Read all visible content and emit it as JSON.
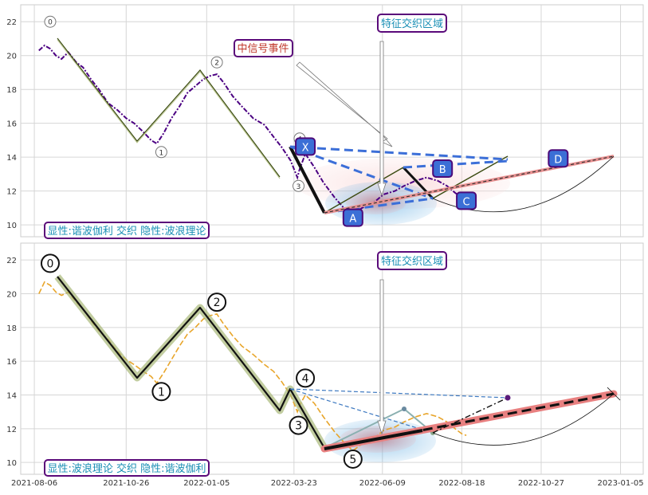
{
  "chart_data": [
    {
      "type": "line",
      "title": "",
      "ylabel": "",
      "xlabel": "",
      "ylim": [
        9.3,
        23.0
      ],
      "yticks": [
        10,
        12,
        14,
        16,
        18,
        20,
        22
      ],
      "grid": true,
      "legend_text": "显性:谐波伽利 交织 隐性:波浪理论",
      "annotations": {
        "event_label": "中信号事件",
        "zone_label": "特征交织区域",
        "harmonic_points": [
          {
            "label": "X",
            "date": "2022-04-02",
            "value": 14.6
          },
          {
            "label": "A",
            "date": "2022-05-14",
            "value": 10.4
          },
          {
            "label": "B",
            "date": "2022-08-01",
            "value": 13.3
          },
          {
            "label": "C",
            "date": "2022-08-22",
            "value": 11.4
          },
          {
            "label": "D",
            "date": "2022-11-11",
            "value": 13.9
          }
        ],
        "wave_circles": [
          {
            "label": "0",
            "date": "2021-08-20",
            "value": 22.0
          },
          {
            "label": "1",
            "date": "2021-11-26",
            "value": 14.3
          },
          {
            "label": "2",
            "date": "2022-01-14",
            "value": 19.6
          },
          {
            "label": "3",
            "date": "2022-03-27",
            "value": 12.3
          },
          {
            "label": "4",
            "date": "2022-03-28",
            "value": 15.1
          }
        ]
      },
      "series": [
        {
          "color": "#4b0082",
          "values": [
            [
              "2021-08-10",
              20.3
            ],
            [
              "2021-08-15",
              20.6
            ],
            [
              "2021-08-20",
              20.4
            ],
            [
              "2021-08-25",
              20.0
            ],
            [
              "2021-08-30",
              19.8
            ],
            [
              "2021-09-05",
              20.2
            ],
            [
              "2021-09-12",
              19.6
            ],
            [
              "2021-09-18",
              19.3
            ],
            [
              "2021-09-25",
              18.6
            ],
            [
              "2021-10-02",
              18.0
            ],
            [
              "2021-10-10",
              17.2
            ],
            [
              "2021-10-18",
              16.8
            ],
            [
              "2021-10-26",
              16.3
            ],
            [
              "2021-11-02",
              16.0
            ],
            [
              "2021-11-10",
              15.5
            ],
            [
              "2021-11-17",
              15.0
            ],
            [
              "2021-11-22",
              14.8
            ],
            [
              "2021-11-28",
              15.4
            ],
            [
              "2021-12-05",
              16.3
            ],
            [
              "2021-12-12",
              17.0
            ],
            [
              "2021-12-19",
              17.8
            ],
            [
              "2021-12-26",
              18.2
            ],
            [
              "2022-01-02",
              18.6
            ],
            [
              "2022-01-08",
              18.8
            ],
            [
              "2022-01-14",
              18.9
            ],
            [
              "2022-01-20",
              18.4
            ],
            [
              "2022-01-28",
              17.6
            ],
            [
              "2022-02-05",
              17.0
            ],
            [
              "2022-02-15",
              16.3
            ],
            [
              "2022-02-25",
              15.9
            ],
            [
              "2022-03-05",
              15.2
            ],
            [
              "2022-03-12",
              14.6
            ],
            [
              "2022-03-20",
              13.8
            ],
            [
              "2022-03-26",
              12.8
            ],
            [
              "2022-03-28",
              13.3
            ],
            [
              "2022-04-02",
              14.2
            ],
            [
              "2022-04-10",
              13.4
            ],
            [
              "2022-04-18",
              12.5
            ],
            [
              "2022-04-28",
              11.6
            ],
            [
              "2022-05-06",
              11.0
            ],
            [
              "2022-05-14",
              10.6
            ],
            [
              "2022-05-22",
              11.0
            ],
            [
              "2022-06-01",
              11.3
            ],
            [
              "2022-06-10",
              11.8
            ],
            [
              "2022-06-20",
              12.0
            ],
            [
              "2022-06-28",
              12.3
            ],
            [
              "2022-07-08",
              12.6
            ],
            [
              "2022-07-18",
              12.8
            ],
            [
              "2022-07-28",
              12.6
            ],
            [
              "2022-08-05",
              12.3
            ],
            [
              "2022-08-12",
              11.9
            ],
            [
              "2022-08-18",
              11.6
            ],
            [
              "2022-08-22",
              11.5
            ]
          ]
        },
        {
          "color": "#e8a52a",
          "values": [
            [
              "2021-08-10",
              20.0
            ],
            [
              "2021-08-15",
              20.7
            ],
            [
              "2021-08-20",
              20.5
            ],
            [
              "2021-08-25",
              20.1
            ],
            [
              "2021-08-30",
              19.9
            ],
            [
              "2021-09-05",
              20.1
            ],
            [
              "2021-09-12",
              19.5
            ],
            [
              "2021-09-18",
              19.1
            ],
            [
              "2021-09-25",
              18.4
            ],
            [
              "2021-10-02",
              17.8
            ],
            [
              "2021-10-10",
              17.3
            ],
            [
              "2021-10-18",
              16.6
            ],
            [
              "2021-10-26",
              16.1
            ],
            [
              "2021-11-02",
              15.8
            ],
            [
              "2021-11-10",
              15.4
            ],
            [
              "2021-11-17",
              15.1
            ],
            [
              "2021-11-22",
              14.7
            ],
            [
              "2021-11-28",
              15.3
            ],
            [
              "2021-12-05",
              16.1
            ],
            [
              "2021-12-12",
              16.9
            ],
            [
              "2021-12-19",
              17.6
            ],
            [
              "2021-12-26",
              18.0
            ],
            [
              "2022-01-02",
              18.5
            ],
            [
              "2022-01-08",
              18.7
            ],
            [
              "2022-01-14",
              18.8
            ],
            [
              "2022-01-20",
              18.2
            ],
            [
              "2022-01-28",
              17.5
            ],
            [
              "2022-02-05",
              16.9
            ],
            [
              "2022-02-15",
              16.4
            ],
            [
              "2022-02-25",
              15.8
            ],
            [
              "2022-03-05",
              15.4
            ],
            [
              "2022-03-12",
              14.8
            ],
            [
              "2022-03-20",
              14.0
            ],
            [
              "2022-03-26",
              13.0
            ],
            [
              "2022-03-28",
              13.4
            ],
            [
              "2022-04-02",
              14.0
            ],
            [
              "2022-04-10",
              13.5
            ],
            [
              "2022-04-18",
              12.7
            ],
            [
              "2022-04-28",
              11.8
            ],
            [
              "2022-05-06",
              11.2
            ],
            [
              "2022-05-14",
              10.7
            ],
            [
              "2022-05-22",
              11.1
            ],
            [
              "2022-06-01",
              11.4
            ],
            [
              "2022-06-10",
              11.9
            ],
            [
              "2022-06-20",
              12.1
            ],
            [
              "2022-06-28",
              12.4
            ],
            [
              "2022-07-08",
              12.7
            ],
            [
              "2022-07-18",
              12.9
            ],
            [
              "2022-07-28",
              12.7
            ],
            [
              "2022-08-05",
              12.4
            ],
            [
              "2022-08-12",
              12.0
            ],
            [
              "2022-08-18",
              11.7
            ],
            [
              "2022-08-22",
              11.6
            ]
          ]
        }
      ]
    },
    {
      "type": "line",
      "title": "",
      "ylim": [
        9.3,
        23.0
      ],
      "yticks": [
        10,
        12,
        14,
        16,
        18,
        20,
        22
      ],
      "xlim": [
        "2021-07-25",
        "2023-01-25"
      ],
      "xticks": [
        "2021-08-06",
        "2021-10-26",
        "2022-01-05",
        "2022-03-23",
        "2022-06-09",
        "2022-08-18",
        "2022-10-27",
        "2023-01-05"
      ],
      "grid": true,
      "legend_text": "显性:波浪理论 交织 隐性:谐波伽利",
      "zone_label": "特征交织区域",
      "wave_points": [
        {
          "label": "0",
          "date": "2021-08-20",
          "value": 21.8
        },
        {
          "label": "1",
          "date": "2021-11-26",
          "value": 14.2
        },
        {
          "label": "2",
          "date": "2022-01-14",
          "value": 19.5
        },
        {
          "label": "3",
          "date": "2022-03-27",
          "value": 12.2
        },
        {
          "label": "4",
          "date": "2022-04-02",
          "value": 15.0
        },
        {
          "label": "5",
          "date": "2022-05-14",
          "value": 10.2
        }
      ]
    }
  ]
}
